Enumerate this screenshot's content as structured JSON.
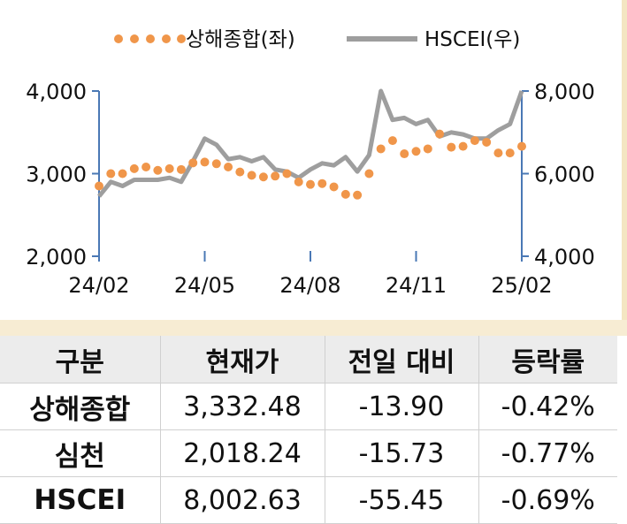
{
  "chart_data": {
    "type": "line",
    "x_ticks": [
      "24/02",
      "24/05",
      "24/08",
      "24/11",
      "25/02"
    ],
    "y_left": {
      "ticks": [
        "2,000",
        "3,000",
        "4,000"
      ],
      "range": [
        2000,
        4000
      ]
    },
    "y_right": {
      "ticks": [
        "4,000",
        "6,000",
        "8,000"
      ],
      "range": [
        4000,
        8000
      ]
    },
    "legend": {
      "placement": "top-center"
    },
    "series": [
      {
        "name": "상해종합(좌)",
        "axis": "left",
        "style": "dotted",
        "color": "#f0964a",
        "x": [
          "24/02",
          "24/02",
          "24/03",
          "24/03",
          "24/03",
          "24/04",
          "24/04",
          "24/04",
          "24/05",
          "24/05",
          "24/05",
          "24/06",
          "24/06",
          "24/06",
          "24/07",
          "24/07",
          "24/07",
          "24/07",
          "24/08",
          "24/08",
          "24/08",
          "24/09",
          "24/09",
          "24/09",
          "24/10",
          "24/10",
          "24/10",
          "24/11",
          "24/11",
          "24/11",
          "24/12",
          "24/12",
          "24/12",
          "25/01",
          "25/01",
          "25/01",
          "25/02"
        ],
        "values": [
          2850,
          3000,
          3000,
          3060,
          3080,
          3040,
          3060,
          3050,
          3130,
          3140,
          3120,
          3080,
          3020,
          2980,
          2960,
          2970,
          3000,
          2900,
          2870,
          2880,
          2840,
          2750,
          2740,
          3000,
          3300,
          3400,
          3240,
          3270,
          3300,
          3480,
          3320,
          3330,
          3400,
          3380,
          3250,
          3250,
          3330
        ]
      },
      {
        "name": "HSCEI(우)",
        "axis": "right",
        "style": "solid",
        "color": "#9e9e9e",
        "x": [
          "24/02",
          "24/02",
          "24/03",
          "24/03",
          "24/03",
          "24/04",
          "24/04",
          "24/04",
          "24/05",
          "24/05",
          "24/05",
          "24/06",
          "24/06",
          "24/06",
          "24/07",
          "24/07",
          "24/07",
          "24/07",
          "24/08",
          "24/08",
          "24/08",
          "24/09",
          "24/09",
          "24/09",
          "24/10",
          "24/10",
          "24/10",
          "24/11",
          "24/11",
          "24/11",
          "24/12",
          "24/12",
          "24/12",
          "25/01",
          "25/01",
          "25/01",
          "25/02"
        ],
        "values": [
          5450,
          5800,
          5700,
          5850,
          5850,
          5850,
          5900,
          5800,
          6300,
          6850,
          6700,
          6350,
          6400,
          6300,
          6400,
          6100,
          6050,
          5900,
          6100,
          6250,
          6200,
          6400,
          6050,
          6450,
          8000,
          7300,
          7350,
          7200,
          7300,
          6900,
          7000,
          6950,
          6850,
          6850,
          7050,
          7200,
          8000
        ]
      }
    ]
  },
  "table": {
    "headers": [
      "구분",
      "현재가",
      "전일 대비",
      "등락률"
    ],
    "rows": [
      [
        "상해종합",
        "3,332.48",
        "-13.90",
        "-0.42%"
      ],
      [
        "심천",
        "2,018.24",
        "-15.73",
        "-0.77%"
      ],
      [
        "HSCEI",
        "8,002.63",
        "-55.45",
        "-0.69%"
      ]
    ]
  }
}
